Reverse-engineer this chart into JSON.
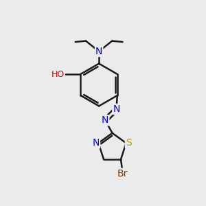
{
  "background_color": "#ebebeb",
  "bond_color": "#1a1a1a",
  "atom_colors": {
    "N": "#0000ee",
    "O": "#cc0000",
    "S": "#b8a000",
    "Br": "#7a3800",
    "C": "#1a1a1a"
  },
  "figsize": [
    3.0,
    3.0
  ],
  "dpi": 100
}
